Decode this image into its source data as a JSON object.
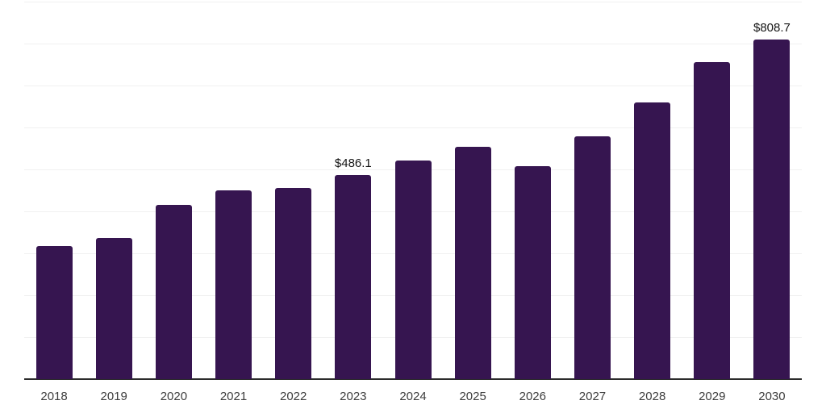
{
  "chart_data": {
    "type": "bar",
    "title": "",
    "xlabel": "",
    "ylabel": "",
    "categories": [
      "2018",
      "2019",
      "2020",
      "2021",
      "2022",
      "2023",
      "2024",
      "2025",
      "2026",
      "2027",
      "2028",
      "2029",
      "2030"
    ],
    "values": [
      318,
      337,
      416,
      450,
      456,
      486.1,
      521,
      554,
      507,
      579,
      660,
      756,
      808.7
    ],
    "annotations": [
      {
        "category": "2023",
        "text": "$486.1"
      },
      {
        "category": "2030",
        "text": "$808.7"
      }
    ],
    "ylim": [
      0,
      900
    ],
    "grid_step": 100,
    "grid": "horizontal",
    "legend": false,
    "y_tick_labels_visible": false,
    "colors": {
      "bar": "#361550",
      "grid": "#f0f0f0",
      "axis": "#2b2b2b",
      "tick_label": "#3d3d3d",
      "annotation": "#141414"
    }
  }
}
